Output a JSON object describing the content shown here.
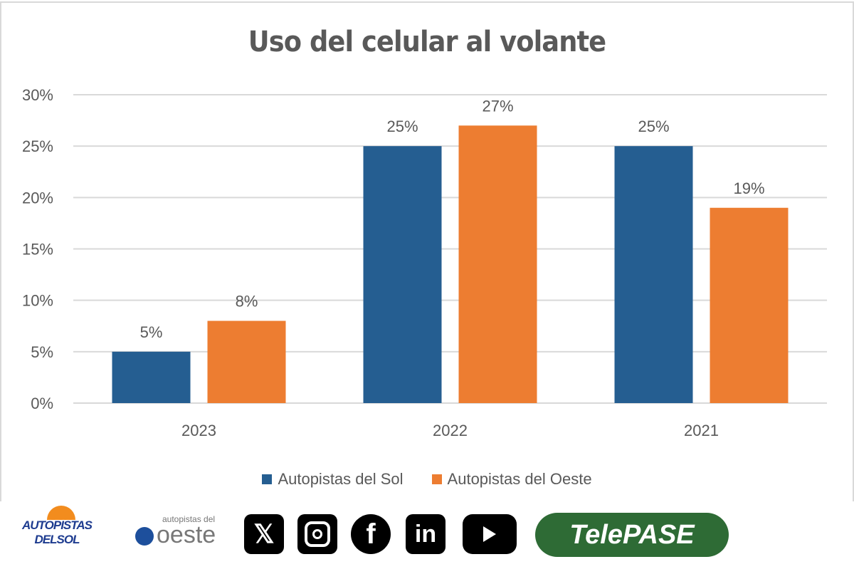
{
  "chart_data": {
    "type": "bar",
    "title": "Uso del celular al volante",
    "categories": [
      "2023",
      "2022",
      "2021"
    ],
    "series": [
      {
        "name": "Autopistas del Sol",
        "values": [
          5,
          25,
          25
        ],
        "labels": [
          "5%",
          "25%",
          "25%"
        ],
        "color": "#255e91"
      },
      {
        "name": "Autopistas del Oeste",
        "values": [
          8,
          27,
          19
        ],
        "labels": [
          "8%",
          "27%",
          "19%"
        ],
        "color": "#ed7d31"
      }
    ],
    "ylim": [
      0,
      30
    ],
    "yticks": [
      "0%",
      "5%",
      "10%",
      "15%",
      "20%",
      "25%",
      "30%"
    ],
    "grid": true,
    "legend": "bottom"
  },
  "footer": {
    "logo_sol_line1": "AUTOPISTAS",
    "logo_sol_line2": "DELSOL",
    "logo_oeste_small": "autopistas del",
    "logo_oeste_big": "oeste",
    "social_icons": [
      "x-icon",
      "instagram-icon",
      "facebook-icon",
      "linkedin-icon",
      "youtube-icon"
    ],
    "telepase": "TelePASE",
    "telepase_color": "#2e6b35"
  }
}
